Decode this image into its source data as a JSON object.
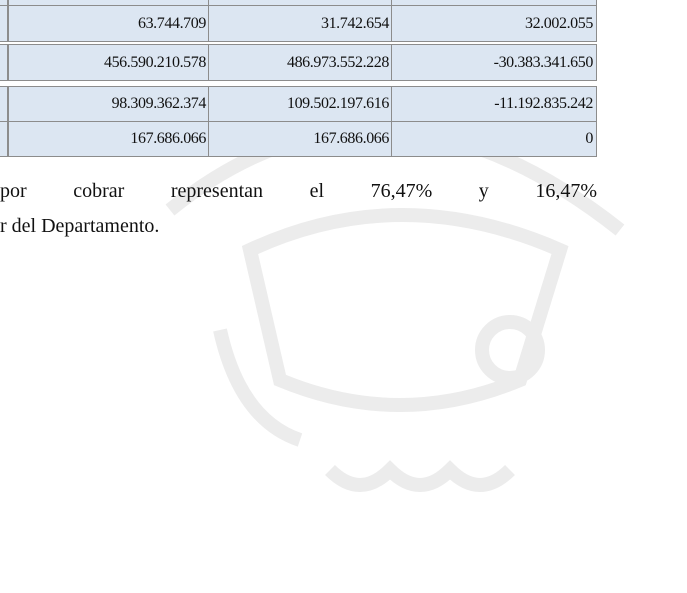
{
  "table": {
    "rows": [
      [
        "63.744.709",
        "31.742.654",
        "32.002.055"
      ],
      [
        "456.590.210.578",
        "486.973.552.228",
        "-30.383.341.650"
      ],
      [
        "98.309.362.374",
        "109.502.197.616",
        "-11.192.835.242"
      ],
      [
        "167.686.066",
        "167.686.066",
        "0"
      ]
    ]
  },
  "paragraph": {
    "lines": [
      "por cobrar representan el 76,47% y 16,47%",
      "r del Departamento."
    ]
  }
}
